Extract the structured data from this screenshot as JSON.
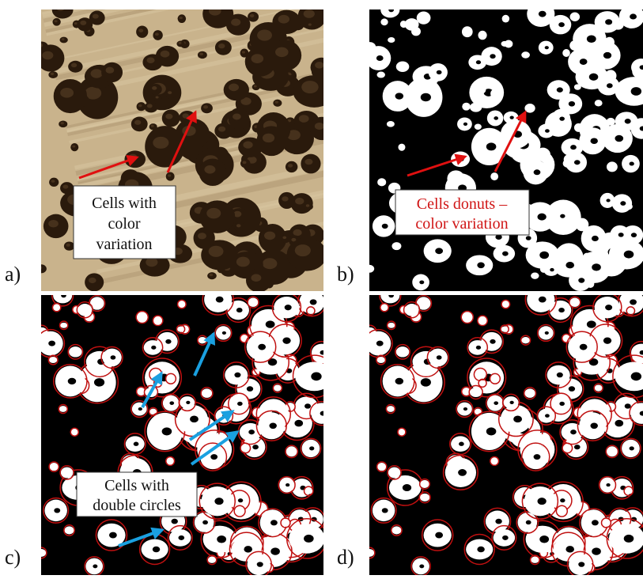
{
  "panels": [
    {
      "label": "a)",
      "annotation": [
        "Cells with",
        "color",
        "variation"
      ]
    },
    {
      "label": "b)",
      "annotation": [
        "Cells donuts –",
        "color variation"
      ]
    },
    {
      "label": "c)",
      "annotation": [
        "Cells with",
        "double circles"
      ]
    },
    {
      "label": "d)"
    }
  ]
}
